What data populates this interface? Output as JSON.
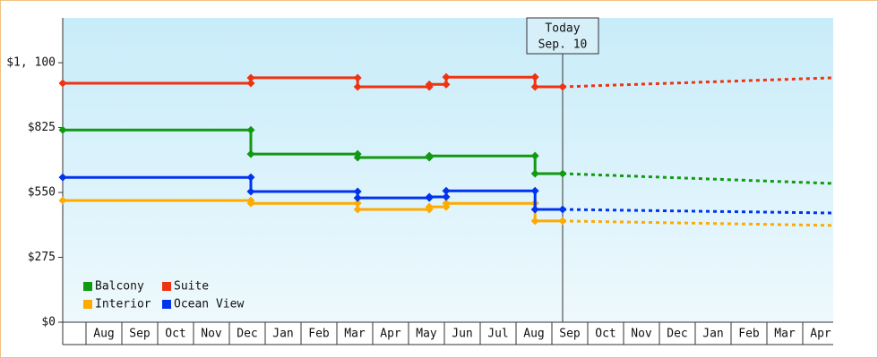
{
  "chart_data": {
    "type": "step-line",
    "ylim": [
      0,
      1290
    ],
    "yticks": [
      {
        "value": 0,
        "label": "$0"
      },
      {
        "value": 275,
        "label": "$275"
      },
      {
        "value": 550,
        "label": "$550"
      },
      {
        "value": 825,
        "label": "$825"
      },
      {
        "value": 1100,
        "label": "$1, 100"
      }
    ],
    "xlim": [
      -0.65,
      20.85
    ],
    "xticks": [
      {
        "value": 0,
        "label": "Aug"
      },
      {
        "value": 1,
        "label": "Sep"
      },
      {
        "value": 2,
        "label": "Oct"
      },
      {
        "value": 3,
        "label": "Nov"
      },
      {
        "value": 4,
        "label": "Dec"
      },
      {
        "value": 5,
        "label": "Jan"
      },
      {
        "value": 6,
        "label": "Feb"
      },
      {
        "value": 7,
        "label": "Mar"
      },
      {
        "value": 8,
        "label": "Apr"
      },
      {
        "value": 9,
        "label": "May"
      },
      {
        "value": 10,
        "label": "Jun"
      },
      {
        "value": 11,
        "label": "Jul"
      },
      {
        "value": 12,
        "label": "Aug"
      },
      {
        "value": 13,
        "label": "Sep"
      },
      {
        "value": 14,
        "label": "Oct"
      },
      {
        "value": 15,
        "label": "Nov"
      },
      {
        "value": 16,
        "label": "Dec"
      },
      {
        "value": 17,
        "label": "Jan"
      },
      {
        "value": 18,
        "label": "Feb"
      },
      {
        "value": 19,
        "label": "Mar"
      },
      {
        "value": 20,
        "label": "Apr"
      }
    ],
    "legend": "bottom-left",
    "annotation": {
      "x": 13.3,
      "lines": [
        "Today",
        "Sep. 10"
      ]
    },
    "series": [
      {
        "name": "Balcony",
        "color": "#119911",
        "x": [
          -0.65,
          4.6,
          4.6,
          7.58,
          7.58,
          9.58,
          9.58,
          12.53,
          12.53,
          13.3
        ],
        "values": [
          815,
          815,
          713,
          713,
          698,
          698,
          705,
          705,
          630,
          630
        ],
        "forecast_x": [
          13.3,
          20.85
        ],
        "forecast_values": [
          630,
          588
        ]
      },
      {
        "name": "Suite",
        "color": "#ee3311",
        "x": [
          -0.65,
          4.6,
          4.6,
          7.58,
          7.58,
          9.58,
          9.58,
          10.05,
          10.05,
          12.53,
          12.53,
          13.3
        ],
        "values": [
          1013,
          1013,
          1036,
          1036,
          998,
          998,
          1008,
          1008,
          1039,
          1039,
          998,
          998
        ],
        "forecast_x": [
          13.3,
          20.85
        ],
        "forecast_values": [
          998,
          1036
        ]
      },
      {
        "name": "Interior",
        "color": "#ffaa00",
        "x": [
          -0.65,
          4.6,
          4.6,
          7.58,
          7.58,
          9.58,
          9.58,
          10.05,
          10.05,
          12.53,
          12.53,
          13.3
        ],
        "values": [
          516,
          516,
          504,
          504,
          478,
          478,
          489,
          489,
          504,
          504,
          429,
          429
        ],
        "forecast_x": [
          13.3,
          20.85
        ],
        "forecast_values": [
          429,
          410
        ]
      },
      {
        "name": "Ocean View",
        "color": "#0033ee",
        "x": [
          -0.65,
          4.6,
          4.6,
          7.58,
          7.58,
          9.58,
          9.58,
          10.05,
          10.05,
          12.53,
          12.53,
          13.3
        ],
        "values": [
          614,
          614,
          554,
          554,
          527,
          527,
          531,
          531,
          557,
          557,
          478,
          478
        ],
        "forecast_x": [
          13.3,
          20.85
        ],
        "forecast_values": [
          478,
          463
        ]
      }
    ]
  }
}
